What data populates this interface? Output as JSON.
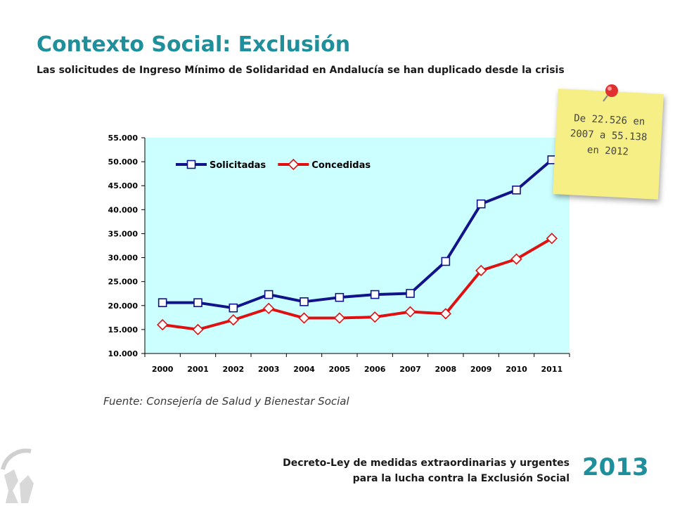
{
  "title": "Contexto Social: Exclusión",
  "subtitle": "Las solicitudes de Ingreso Mínimo de Solidaridad en Andalucía se han duplicado desde la crisis",
  "source": "Fuente: Consejería de Salud y Bienestar Social",
  "note": "De 22.526 en 2007 a 55.138 en 2012",
  "footer": {
    "line1": "Decreto-Ley de medidas extraordinarias y urgentes",
    "line2": "para la lucha contra la Exclusión Social",
    "year": "2013"
  },
  "colors": {
    "accent": "#1f8f9b",
    "plot_bg": "#ccffff",
    "solicitadas": "#12128a",
    "concedidas": "#e01010",
    "note_bg": "#f6ef86"
  },
  "chart_data": {
    "type": "line",
    "categories": [
      "2000",
      "2001",
      "2002",
      "2003",
      "2004",
      "2005",
      "2006",
      "2007",
      "2008",
      "2009",
      "2010",
      "2011"
    ],
    "series": [
      {
        "name": "Solicitadas",
        "marker": "square",
        "values": [
          20600,
          20600,
          19500,
          22300,
          20800,
          21700,
          22300,
          22526,
          29200,
          41200,
          44100,
          50400
        ]
      },
      {
        "name": "Concedidas",
        "marker": "diamond",
        "values": [
          16000,
          15000,
          17000,
          19400,
          17400,
          17400,
          17600,
          18700,
          18300,
          27300,
          29700,
          34000
        ]
      }
    ],
    "ylim": [
      10000,
      55000
    ],
    "yticks": [
      10000,
      15000,
      20000,
      25000,
      30000,
      35000,
      40000,
      45000,
      50000,
      55000
    ],
    "ytick_labels": [
      "10.000",
      "15.000",
      "20.000",
      "25.000",
      "30.000",
      "35.000",
      "40.000",
      "45.000",
      "50.000",
      "55.000"
    ],
    "legend_position": "top-left",
    "grid": false
  }
}
